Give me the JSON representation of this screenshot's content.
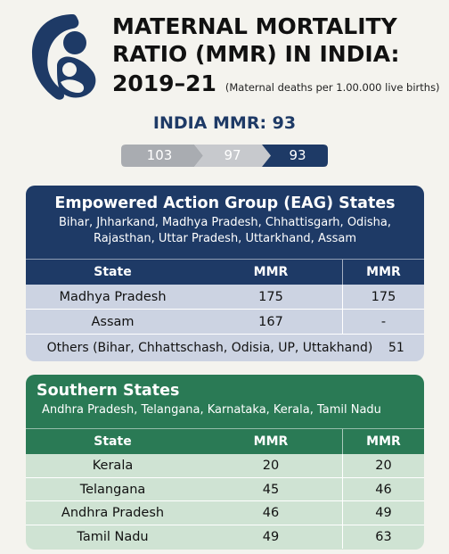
{
  "header": {
    "title": "MATERNAL MORTALITY RATIO (MMR) IN INDIA:",
    "year": "2019–21",
    "unit_note": "(Maternal deaths per 1.00.000 live births)"
  },
  "india": {
    "label": "INDIA MMR: 93",
    "trend": [
      "103",
      "97",
      "93"
    ]
  },
  "eag": {
    "title": "Empowered  Action Group (EAG) States",
    "states_line1": "Bihar, Jhharkand, Madhya Pradesh, Chhattisgarh, Odisha,",
    "states_line2": "Rajasthan, Uttar Pradesh, Uttarkhand, Assam",
    "columns": [
      "State",
      "MMR",
      "MMR"
    ],
    "rows": [
      {
        "state": "Madhya Pradesh",
        "v1": "175",
        "v2": "175"
      },
      {
        "state": "Assam",
        "v1": "167",
        "v2": "-"
      }
    ],
    "others": {
      "state": "Others (Bihar,  Chhattschash, Odisia, UP, Uttakhand)",
      "value": "51"
    }
  },
  "south": {
    "title": "Southern States",
    "states_line": "Andhra Pradesh, Telangana, Karnataka, Kerala, Tamil Nadu",
    "columns": [
      "State",
      "MMR",
      "MMR"
    ],
    "rows": [
      {
        "state": "Kerala",
        "v1": "20",
        "v2": "20"
      },
      {
        "state": "Telangana",
        "v1": "45",
        "v2": "46"
      },
      {
        "state": "Andhra Pradesh",
        "v1": "46",
        "v2": "49"
      },
      {
        "state": "Tamil Nadu",
        "v1": "49",
        "v2": "63"
      }
    ]
  },
  "colors": {
    "navy": "#1e3a66",
    "green": "#2a7a55",
    "gray": "#a9acb1",
    "light_gray": "#c7c9cd"
  },
  "icons": {
    "logo": "mother-child-icon"
  }
}
